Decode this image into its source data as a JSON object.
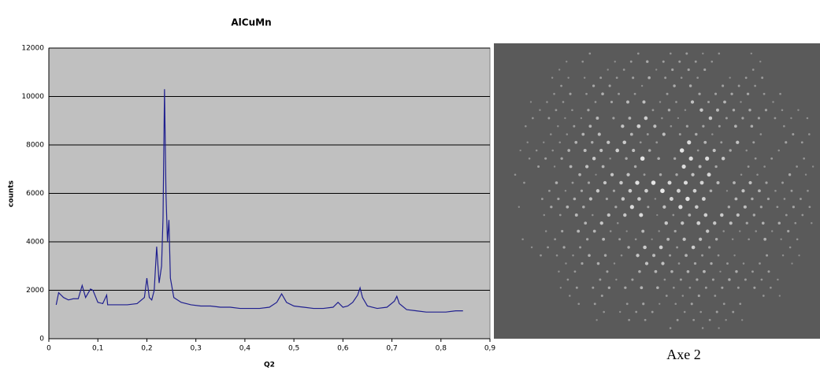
{
  "chart_data": {
    "type": "line",
    "title": "AlCuMn",
    "x_label": "Q2",
    "y_label": "counts",
    "x": [
      0.015,
      0.02,
      0.03,
      0.04,
      0.05,
      0.06,
      0.068,
      0.075,
      0.085,
      0.09,
      0.1,
      0.11,
      0.118,
      0.12,
      0.14,
      0.16,
      0.18,
      0.195,
      0.2,
      0.205,
      0.21,
      0.215,
      0.22,
      0.225,
      0.23,
      0.233,
      0.236,
      0.239,
      0.242,
      0.245,
      0.248,
      0.255,
      0.27,
      0.29,
      0.31,
      0.33,
      0.35,
      0.37,
      0.39,
      0.41,
      0.43,
      0.45,
      0.465,
      0.475,
      0.485,
      0.5,
      0.52,
      0.54,
      0.56,
      0.58,
      0.59,
      0.6,
      0.61,
      0.62,
      0.63,
      0.635,
      0.64,
      0.65,
      0.67,
      0.69,
      0.705,
      0.71,
      0.715,
      0.73,
      0.75,
      0.77,
      0.79,
      0.81,
      0.83,
      0.845
    ],
    "series": [
      {
        "color": "#1f1f8f",
        "values": [
          1400,
          1900,
          1700,
          1600,
          1650,
          1650,
          2200,
          1700,
          2050,
          2000,
          1500,
          1450,
          1800,
          1400,
          1400,
          1400,
          1450,
          1700,
          2500,
          1700,
          1600,
          2000,
          3800,
          2300,
          3000,
          5000,
          10300,
          6000,
          4000,
          4900,
          2500,
          1700,
          1500,
          1400,
          1350,
          1350,
          1300,
          1300,
          1250,
          1250,
          1250,
          1300,
          1500,
          1850,
          1500,
          1350,
          1300,
          1250,
          1250,
          1300,
          1500,
          1300,
          1350,
          1500,
          1800,
          2100,
          1700,
          1350,
          1250,
          1300,
          1550,
          1750,
          1450,
          1200,
          1150,
          1100,
          1100,
          1100,
          1150,
          1150
        ]
      }
    ],
    "xlim": [
      0,
      0.9
    ],
    "ylim": [
      0,
      12000
    ],
    "xticks": [
      0,
      {
        "value": 0.1,
        "label": "0,1"
      },
      {
        "value": 0.2,
        "label": "0,2"
      },
      {
        "value": 0.3,
        "label": "0,3"
      },
      {
        "value": 0.4,
        "label": "0,4"
      },
      {
        "value": 0.5,
        "label": "0,5"
      },
      {
        "value": 0.6,
        "label": "0,6"
      },
      {
        "value": 0.7,
        "label": "0,7"
      },
      {
        "value": 0.8,
        "label": "0,8"
      },
      {
        "value": 0.9,
        "label": "0,9"
      }
    ],
    "yticks": [
      0,
      2000,
      4000,
      6000,
      8000,
      10000,
      12000
    ],
    "grid": true
  },
  "image": {
    "caption": "Axe 2"
  }
}
